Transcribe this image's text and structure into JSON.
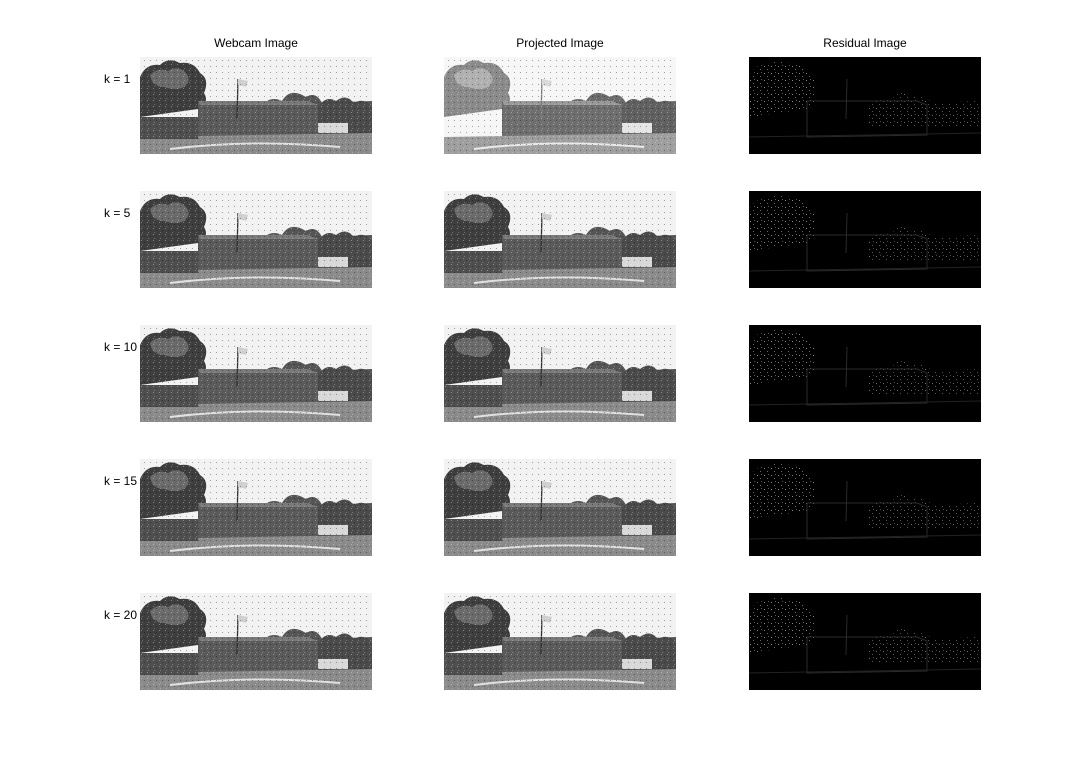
{
  "figure": {
    "columns": [
      {
        "title": "Webcam Image",
        "kind": "webcam"
      },
      {
        "title": "Projected Image",
        "kind": "projected"
      },
      {
        "title": "Residual Image",
        "kind": "residual"
      }
    ],
    "rows": [
      {
        "label": "k = 1"
      },
      {
        "label": "k = 5"
      },
      {
        "label": "k = 10"
      },
      {
        "label": "k = 15"
      },
      {
        "label": "k = 20"
      }
    ]
  }
}
